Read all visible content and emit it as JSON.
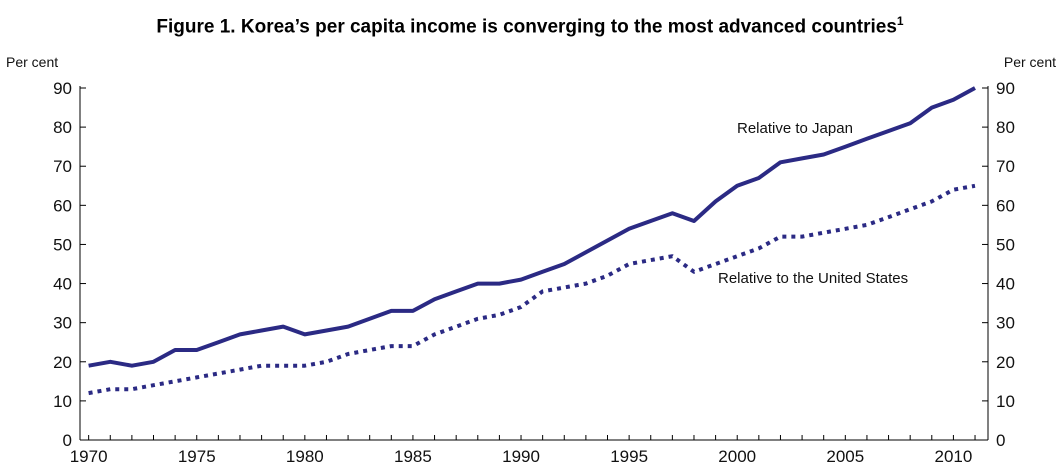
{
  "chart_data": {
    "type": "line",
    "title": "Figure 1. Korea’s per capita income is converging to the most advanced countries",
    "title_footnote_mark": "1",
    "ylabel_left": "Per cent",
    "ylabel_right": "Per cent",
    "xlabel": "",
    "xlim": [
      1970,
      2011
    ],
    "ylim": [
      0,
      90
    ],
    "x_ticks": [
      1970,
      1975,
      1980,
      1985,
      1990,
      1995,
      2000,
      2005,
      2010
    ],
    "y_ticks": [
      0,
      10,
      20,
      30,
      40,
      50,
      60,
      70,
      80,
      90
    ],
    "grid": false,
    "legend": "none (series labelled inline)",
    "colors": {
      "series": "#2b2a84"
    },
    "x": [
      1970,
      1971,
      1972,
      1973,
      1974,
      1975,
      1976,
      1977,
      1978,
      1979,
      1980,
      1981,
      1982,
      1983,
      1984,
      1985,
      1986,
      1987,
      1988,
      1989,
      1990,
      1991,
      1992,
      1993,
      1994,
      1995,
      1996,
      1997,
      1998,
      1999,
      2000,
      2001,
      2002,
      2003,
      2004,
      2005,
      2006,
      2007,
      2008,
      2009,
      2010,
      2011
    ],
    "series": [
      {
        "name": "Relative to Japan",
        "style": "solid",
        "values": [
          19,
          20,
          19,
          20,
          23,
          23,
          25,
          27,
          28,
          29,
          27,
          28,
          29,
          31,
          33,
          33,
          36,
          38,
          40,
          40,
          41,
          43,
          45,
          48,
          51,
          54,
          56,
          58,
          56,
          61,
          65,
          67,
          71,
          72,
          73,
          75,
          77,
          79,
          81,
          85,
          87,
          90
        ]
      },
      {
        "name": "Relative to the United States",
        "style": "dotted",
        "values": [
          12,
          13,
          13,
          14,
          15,
          16,
          17,
          18,
          19,
          19,
          19,
          20,
          22,
          23,
          24,
          24,
          27,
          29,
          31,
          32,
          34,
          38,
          39,
          40,
          42,
          45,
          46,
          47,
          43,
          45,
          47,
          49,
          52,
          52,
          53,
          54,
          55,
          57,
          59,
          61,
          64,
          65
        ]
      }
    ]
  }
}
